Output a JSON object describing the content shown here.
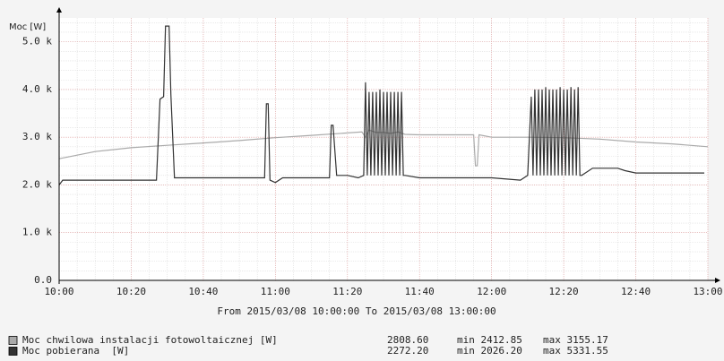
{
  "chart_data": {
    "type": "line",
    "ylabel": "Moc [W]",
    "xlabel": "From 2015/03/08 10:00:00 To 2015/03/08 13:00:00",
    "xlim": [
      0,
      180
    ],
    "xticks": [
      {
        "value": 0,
        "label": "10:00"
      },
      {
        "value": 20,
        "label": "10:20"
      },
      {
        "value": 40,
        "label": "10:40"
      },
      {
        "value": 60,
        "label": "11:00"
      },
      {
        "value": 80,
        "label": "11:20"
      },
      {
        "value": 100,
        "label": "11:40"
      },
      {
        "value": 120,
        "label": "12:00"
      },
      {
        "value": 140,
        "label": "12:20"
      },
      {
        "value": 160,
        "label": "12:40"
      },
      {
        "value": 180,
        "label": "13:00"
      }
    ],
    "ylim": [
      0,
      5500
    ],
    "yticks": [
      {
        "value": 0,
        "label": "0.0"
      },
      {
        "value": 1000,
        "label": "1.0 k"
      },
      {
        "value": 2000,
        "label": "2.0 k"
      },
      {
        "value": 3000,
        "label": "3.0 k"
      },
      {
        "value": 4000,
        "label": "4.0 k"
      },
      {
        "value": 5000,
        "label": "5.0 k"
      }
    ],
    "grid": true,
    "series": [
      {
        "name": "Moc chwilowa instalacji fotowoltaicznej [W]",
        "color": "#aaaaaa",
        "stats": [
          "2808.60",
          "min 2412.85",
          "max 3155.17"
        ],
        "x": [
          0,
          10,
          20,
          30,
          40,
          50,
          60,
          70,
          80,
          84,
          85,
          86,
          88,
          90,
          92,
          94,
          96,
          100,
          110,
          115,
          115.5,
          116,
          116.5,
          120,
          130,
          140,
          150,
          160,
          170,
          180
        ],
        "values": [
          2550,
          2700,
          2780,
          2830,
          2880,
          2930,
          2990,
          3040,
          3090,
          3110,
          3000,
          3150,
          3100,
          3100,
          3080,
          3110,
          3060,
          3050,
          3050,
          3050,
          2400,
          2400,
          3050,
          3000,
          3000,
          2990,
          2960,
          2900,
          2860,
          2800
        ]
      },
      {
        "name": "Moc pobierana  [W]",
        "color": "#333333",
        "stats": [
          "2272.20",
          "min 2026.20",
          "max 5331.55"
        ],
        "x": [
          0,
          1,
          27,
          28,
          29,
          29.5,
          30.5,
          31,
          32,
          57,
          57.5,
          58,
          58.5,
          60,
          62,
          75,
          75.5,
          76,
          77,
          80,
          83,
          84.5,
          85,
          85.5,
          86,
          86.5,
          87,
          87.5,
          88,
          88.5,
          89,
          89.5,
          90,
          90.5,
          91,
          91.5,
          92,
          92.5,
          93,
          93.5,
          94,
          94.5,
          95,
          95.5,
          96,
          100,
          110,
          120,
          128,
          130,
          131,
          131.5,
          132,
          132.5,
          133,
          133.5,
          134,
          134.5,
          135,
          135.5,
          136,
          136.5,
          137,
          137.5,
          138,
          138.5,
          139,
          139.5,
          140,
          140.5,
          141,
          141.5,
          142,
          142.5,
          143,
          143.5,
          144,
          144.5,
          145,
          146,
          148,
          155,
          157,
          160,
          170,
          177,
          179
        ],
        "values": [
          2000,
          2100,
          2100,
          3800,
          3850,
          5330,
          5330,
          3900,
          2150,
          2150,
          3700,
          3700,
          2100,
          2050,
          2150,
          2150,
          3250,
          3250,
          2200,
          2200,
          2150,
          2200,
          4150,
          2200,
          3950,
          2200,
          3950,
          2200,
          3950,
          2200,
          4000,
          2200,
          3950,
          2200,
          3950,
          2200,
          3950,
          2200,
          3950,
          2200,
          3950,
          2200,
          3950,
          2200,
          2200,
          2150,
          2150,
          2150,
          2100,
          2200,
          3850,
          2200,
          4000,
          2200,
          4000,
          2200,
          4000,
          2200,
          4050,
          2200,
          4000,
          2200,
          4000,
          2200,
          4000,
          2200,
          4050,
          2200,
          4000,
          2200,
          4000,
          2200,
          4050,
          2200,
          4000,
          2200,
          4050,
          2200,
          2200,
          2250,
          2350,
          2350,
          2300,
          2250,
          2250,
          2250,
          2250
        ]
      }
    ]
  }
}
